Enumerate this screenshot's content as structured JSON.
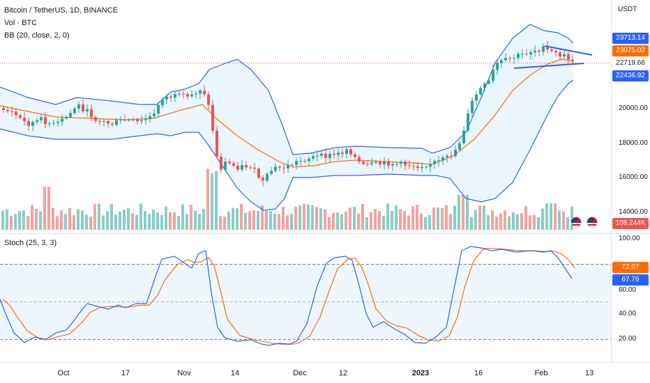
{
  "header": {
    "symbol": "Bitcoin / TetherUS, 1D, BINANCE",
    "volume_label": "Vol · BTC",
    "bb_label": "BB (20, close, 2, 0)"
  },
  "stoch_panel": {
    "label": "Stoch (25, 3, 3)"
  },
  "price_axis": {
    "unit": "USDT",
    "ticks": [
      "20000.00",
      "18000.00",
      "16000.00",
      "14000.00"
    ],
    "tags": [
      {
        "value": "23713.14",
        "color": "#2962ff"
      },
      {
        "value": "23075.03",
        "color": "#ff6d00"
      },
      {
        "value": "22719.66",
        "color": "#ffffff",
        "text_color": "#131722"
      },
      {
        "value": "22436.92",
        "color": "#2962ff"
      },
      {
        "value": "108.244K",
        "color": "#ef5350"
      }
    ]
  },
  "stoch_axis": {
    "ticks": [
      "100.00",
      "60.00",
      "40.00",
      "20.00"
    ],
    "tags": [
      {
        "value": "72.07",
        "color": "#ff6d00"
      },
      {
        "value": "67.76",
        "color": "#2962ff"
      }
    ]
  },
  "time_axis": [
    "Oct",
    "17",
    "Nov",
    "14",
    "Dec",
    "12",
    "2023",
    "16",
    "Feb",
    "13"
  ],
  "colors": {
    "up": "#26a69a",
    "down": "#ef5350",
    "bb_band": "#2962ff",
    "bb_basis": "#ff6d00",
    "stoch_k": "#2962ff",
    "stoch_d": "#ff6d00"
  },
  "icons": [
    "us-flag-icon",
    "us-flag-icon"
  ]
}
